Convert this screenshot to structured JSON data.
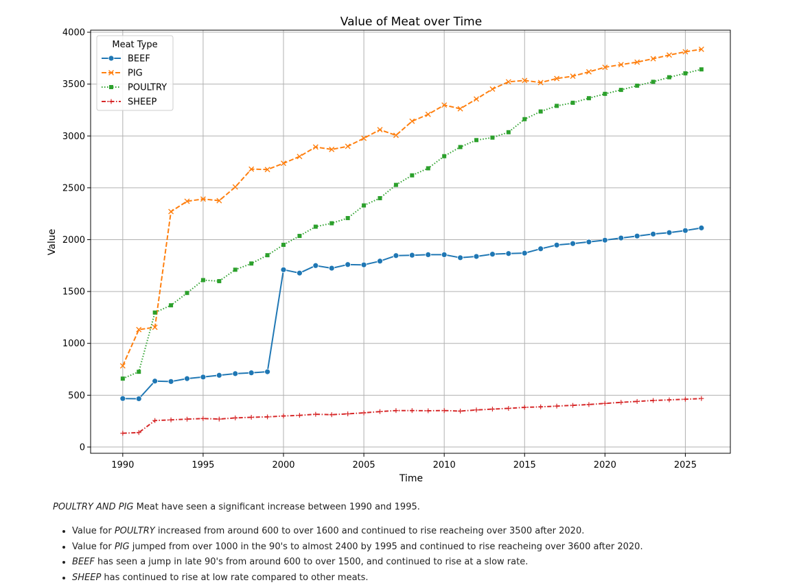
{
  "chart_data": {
    "type": "line",
    "title": "Value of Meat over Time",
    "xlabel": "Time",
    "ylabel": "Value",
    "xlim": [
      1988,
      2027.8
    ],
    "ylim": [
      -60,
      4020
    ],
    "xticks": [
      1990,
      1995,
      2000,
      2005,
      2010,
      2015,
      2020,
      2025
    ],
    "yticks": [
      0,
      500,
      1000,
      1500,
      2000,
      2500,
      3000,
      3500,
      4000
    ],
    "grid": true,
    "legend": {
      "title": "Meat Type",
      "position": "top-left"
    },
    "x": [
      1990,
      1991,
      1992,
      1993,
      1994,
      1995,
      1996,
      1997,
      1998,
      1999,
      2000,
      2001,
      2002,
      2003,
      2004,
      2005,
      2006,
      2007,
      2008,
      2009,
      2010,
      2011,
      2012,
      2013,
      2014,
      2015,
      2016,
      2017,
      2018,
      2019,
      2020,
      2021,
      2022,
      2023,
      2024,
      2025,
      2026
    ],
    "series": [
      {
        "name": "BEEF",
        "color": "#1f77b4",
        "marker": "circle",
        "dash": "solid",
        "values": [
          468,
          466,
          636,
          632,
          660,
          675,
          692,
          708,
          716,
          726,
          1710,
          1678,
          1750,
          1725,
          1760,
          1757,
          1793,
          1846,
          1850,
          1855,
          1855,
          1826,
          1838,
          1860,
          1866,
          1870,
          1912,
          1948,
          1962,
          1978,
          1995,
          2016,
          2035,
          2054,
          2068,
          2088,
          2113
        ]
      },
      {
        "name": "PIG",
        "color": "#ff7f0e",
        "marker": "x",
        "dash": "dashed",
        "values": [
          783,
          1133,
          1155,
          2271,
          2370,
          2392,
          2376,
          2508,
          2680,
          2676,
          2736,
          2802,
          2893,
          2870,
          2900,
          2978,
          3060,
          3006,
          3142,
          3208,
          3298,
          3262,
          3356,
          3452,
          3522,
          3535,
          3515,
          3554,
          3576,
          3618,
          3662,
          3688,
          3712,
          3745,
          3780,
          3812,
          3836
        ]
      },
      {
        "name": "POULTRY",
        "color": "#2ca02c",
        "marker": "square",
        "dash": "dotted",
        "values": [
          660,
          726,
          1297,
          1367,
          1486,
          1610,
          1600,
          1710,
          1770,
          1850,
          1950,
          2036,
          2125,
          2158,
          2208,
          2330,
          2400,
          2528,
          2620,
          2688,
          2805,
          2893,
          2960,
          2984,
          3036,
          3162,
          3236,
          3290,
          3320,
          3364,
          3406,
          3444,
          3485,
          3522,
          3566,
          3604,
          3642
        ]
      },
      {
        "name": "SHEEP",
        "color": "#d62728",
        "marker": "plus",
        "dash": "dashdot",
        "values": [
          133,
          140,
          256,
          262,
          269,
          275,
          270,
          281,
          287,
          291,
          300,
          306,
          316,
          312,
          320,
          330,
          342,
          352,
          352,
          350,
          352,
          347,
          358,
          366,
          373,
          383,
          388,
          395,
          402,
          410,
          421,
          431,
          440,
          449,
          455,
          461,
          468
        ]
      }
    ]
  },
  "notes": {
    "intro_em": "POULTRY AND PIG",
    "intro_rest": " Meat have seen a significant increase between 1990 and 1995.",
    "bullets": [
      {
        "pre": "Value for ",
        "em": "POULTRY",
        "post": " increased from around 600 to over 1600 and continued to rise reacheing over 3500 after 2020."
      },
      {
        "pre": "Value for ",
        "em": "PIG",
        "post": " jumped from over 1000 in the 90's to almost 2400 by 1995 and continued to rise reacheing over 3600 after 2020."
      },
      {
        "pre": "",
        "em": "BEEF",
        "post": " has seen a jump in late 90's from around 600 to over 1500, and continued to rise at a slow rate."
      },
      {
        "pre": "",
        "em": "SHEEP",
        "post": " has continued to rise at low rate compared to other meats."
      }
    ]
  }
}
